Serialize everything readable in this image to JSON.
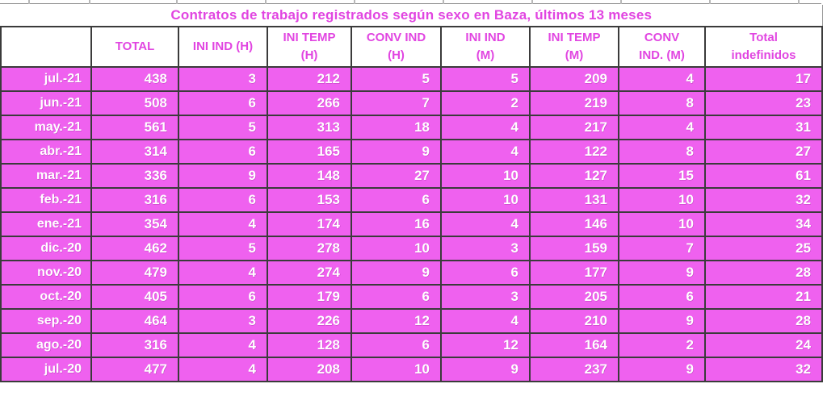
{
  "colors": {
    "cell_bg": "#EF61EF",
    "heading_text": "#E145E1",
    "cell_text": "#FFFFFF",
    "grid_border": "#3B3B3B"
  },
  "chart_data": {
    "type": "table",
    "title": "Contratos de trabajo registrados según sexo en Baza, últimos 13 meses",
    "columns": [
      "",
      "TOTAL",
      "INI IND (H)",
      "INI TEMP (H)",
      "CONV IND (H)",
      "INI IND (M)",
      "INI TEMP (M)",
      "CONV IND. (M)",
      "Total indefinidos"
    ],
    "header_lines": [
      [
        ""
      ],
      [
        "TOTAL"
      ],
      [
        "INI IND (H)"
      ],
      [
        "INI TEMP",
        "(H)"
      ],
      [
        "CONV IND",
        "(H)"
      ],
      [
        "INI IND",
        "(M)"
      ],
      [
        "INI TEMP",
        "(M)"
      ],
      [
        "CONV",
        "IND.  (M)"
      ],
      [
        "Total",
        "indefinidos"
      ]
    ],
    "rows": [
      {
        "month": "jul.-21",
        "values": [
          438,
          3,
          212,
          5,
          5,
          209,
          4,
          17
        ]
      },
      {
        "month": "jun.-21",
        "values": [
          508,
          6,
          266,
          7,
          2,
          219,
          8,
          23
        ]
      },
      {
        "month": "may.-21",
        "values": [
          561,
          5,
          313,
          18,
          4,
          217,
          4,
          31
        ]
      },
      {
        "month": "abr.-21",
        "values": [
          314,
          6,
          165,
          9,
          4,
          122,
          8,
          27
        ]
      },
      {
        "month": "mar.-21",
        "values": [
          336,
          9,
          148,
          27,
          10,
          127,
          15,
          61
        ]
      },
      {
        "month": "feb.-21",
        "values": [
          316,
          6,
          153,
          6,
          10,
          131,
          10,
          32
        ]
      },
      {
        "month": "ene.-21",
        "values": [
          354,
          4,
          174,
          16,
          4,
          146,
          10,
          34
        ]
      },
      {
        "month": "dic.-20",
        "values": [
          462,
          5,
          278,
          10,
          3,
          159,
          7,
          25
        ]
      },
      {
        "month": "nov.-20",
        "values": [
          479,
          4,
          274,
          9,
          6,
          177,
          9,
          28
        ]
      },
      {
        "month": "oct.-20",
        "values": [
          405,
          6,
          179,
          6,
          3,
          205,
          6,
          21
        ]
      },
      {
        "month": "sep.-20",
        "values": [
          464,
          3,
          226,
          12,
          4,
          210,
          9,
          28
        ]
      },
      {
        "month": "ago.-20",
        "values": [
          316,
          4,
          128,
          6,
          12,
          164,
          2,
          24
        ]
      },
      {
        "month": "jul.-20",
        "values": [
          477,
          4,
          208,
          10,
          9,
          237,
          9,
          32
        ]
      }
    ]
  }
}
